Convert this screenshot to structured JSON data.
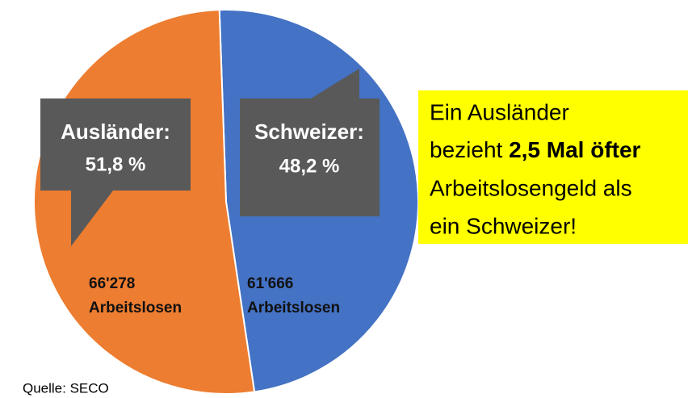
{
  "chart_data": {
    "type": "pie",
    "categories": [
      "Ausländer:",
      "Schweizer:"
    ],
    "values": [
      51.8,
      48.2
    ],
    "value_labels": [
      "51,8 %",
      "48,2 %"
    ],
    "colors": [
      "#ed7d31",
      "#4472c4"
    ],
    "count_labels": [
      "66'278",
      "61'666"
    ],
    "count_unit": "Arbeitslosen",
    "callout": {
      "before": [
        "Ein Ausländer",
        "bezieht "
      ],
      "bold": "2,5 Mal öfter",
      "after": [
        "Arbeitslosengeld als",
        "ein Schweizer!"
      ]
    },
    "source": "Quelle: SECO"
  }
}
